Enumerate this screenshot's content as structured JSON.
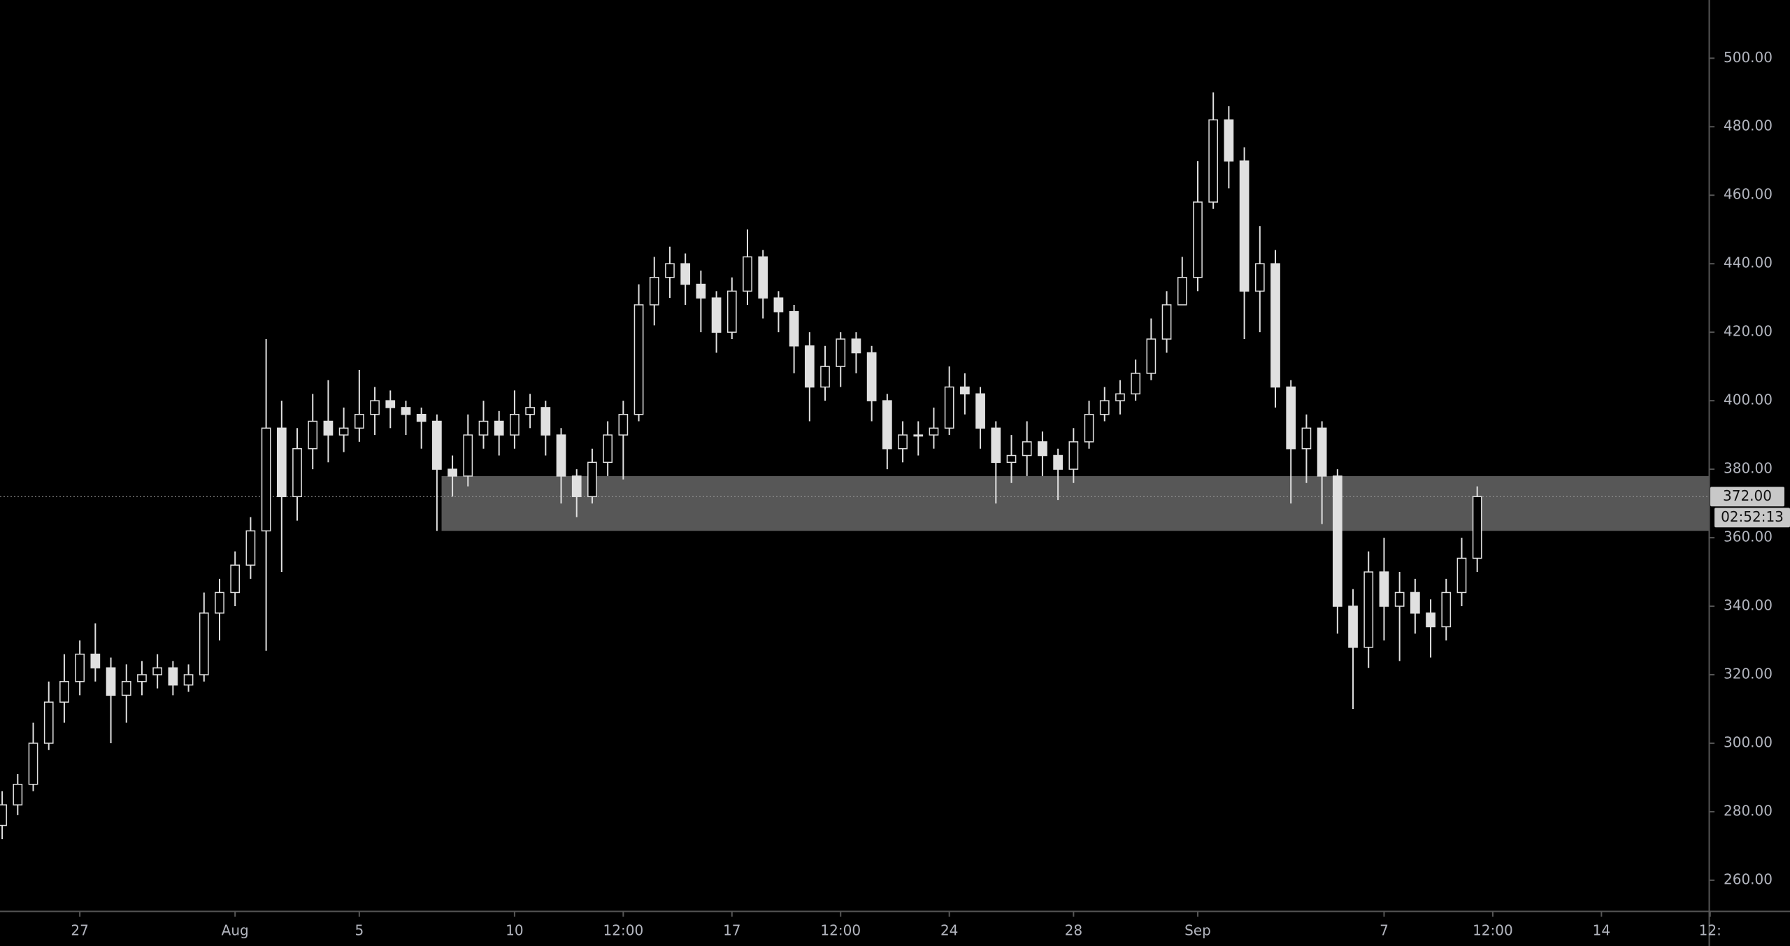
{
  "chart_data": {
    "type": "candlestick",
    "color": "#e0e0e0",
    "x": [
      -2.5,
      -2,
      -1.5,
      -1,
      -0.5,
      0,
      0.5,
      1,
      1.5,
      2,
      2.5,
      3,
      3.5,
      4,
      4.5,
      5,
      5.5,
      6,
      6.5,
      7,
      7.5,
      8,
      8.5,
      9,
      9.5,
      10,
      10.5,
      11,
      11.5,
      12,
      12.5,
      13,
      13.5,
      14,
      14.5,
      15,
      15.5,
      16,
      16.5,
      17,
      17.5,
      18,
      18.5,
      19,
      19.5,
      20,
      20.5,
      21,
      21.5,
      22,
      22.5,
      23,
      23.5,
      24,
      24.5,
      25,
      25.5,
      26,
      26.5,
      27,
      27.5,
      28,
      28.5,
      29,
      29.5,
      30,
      30.5,
      31,
      31.5,
      32,
      32.5,
      33,
      33.5,
      34,
      34.5,
      35,
      35.5,
      36,
      36.5,
      37,
      37.5,
      38,
      38.5,
      39,
      39.5,
      40,
      40.5,
      41,
      41.5,
      42,
      42.5,
      43,
      43.5,
      44,
      44.5,
      45
    ],
    "open": [
      276,
      282,
      288,
      300,
      312,
      318,
      326,
      322,
      314,
      318,
      320,
      322,
      317,
      320,
      338,
      344,
      352,
      362,
      392,
      372,
      386,
      394,
      390,
      392,
      396,
      400,
      398,
      396,
      394,
      380,
      378,
      390,
      394,
      390,
      396,
      398,
      390,
      378,
      372,
      382,
      390,
      396,
      428,
      436,
      440,
      434,
      430,
      420,
      432,
      442,
      430,
      426,
      416,
      404,
      410,
      418,
      414,
      400,
      386,
      390,
      390,
      392,
      404,
      402,
      392,
      382,
      384,
      388,
      384,
      380,
      388,
      396,
      400,
      402,
      408,
      418,
      428,
      436,
      458,
      482,
      470,
      432,
      440,
      404,
      386,
      392,
      378,
      340,
      328,
      350,
      340,
      344,
      338,
      334,
      344,
      354
    ],
    "high": [
      286,
      291,
      306,
      318,
      326,
      330,
      335,
      325,
      323,
      324,
      326,
      324,
      323,
      344,
      348,
      356,
      366,
      418,
      400,
      392,
      402,
      406,
      398,
      409,
      404,
      403,
      400,
      398,
      396,
      384,
      396,
      400,
      397,
      403,
      402,
      400,
      392,
      380,
      386,
      394,
      400,
      434,
      442,
      445,
      443,
      438,
      432,
      436,
      450,
      444,
      432,
      428,
      420,
      416,
      420,
      420,
      416,
      402,
      394,
      394,
      398,
      410,
      408,
      404,
      394,
      390,
      394,
      391,
      386,
      392,
      400,
      404,
      406,
      412,
      424,
      432,
      442,
      470,
      490,
      486,
      474,
      451,
      444,
      406,
      396,
      394,
      380,
      345,
      356,
      360,
      350,
      348,
      342,
      348,
      360,
      375
    ],
    "low": [
      272,
      279,
      286,
      298,
      306,
      314,
      318,
      300,
      306,
      314,
      316,
      314,
      315,
      318,
      330,
      340,
      348,
      327,
      350,
      365,
      380,
      382,
      385,
      388,
      390,
      392,
      390,
      386,
      362,
      372,
      375,
      386,
      384,
      386,
      392,
      384,
      370,
      366,
      370,
      378,
      377,
      394,
      422,
      430,
      428,
      420,
      414,
      418,
      428,
      424,
      420,
      408,
      394,
      400,
      404,
      408,
      394,
      380,
      382,
      384,
      386,
      390,
      396,
      386,
      370,
      376,
      378,
      378,
      371,
      376,
      386,
      394,
      396,
      400,
      406,
      414,
      428,
      432,
      456,
      462,
      418,
      420,
      398,
      370,
      376,
      364,
      332,
      310,
      322,
      330,
      324,
      332,
      325,
      330,
      340,
      350
    ],
    "close": [
      282,
      288,
      300,
      312,
      318,
      326,
      322,
      314,
      318,
      320,
      322,
      317,
      320,
      338,
      344,
      352,
      362,
      392,
      372,
      386,
      394,
      390,
      392,
      396,
      400,
      398,
      396,
      394,
      380,
      378,
      390,
      394,
      390,
      396,
      398,
      390,
      378,
      372,
      382,
      390,
      396,
      428,
      436,
      440,
      434,
      430,
      420,
      432,
      442,
      430,
      426,
      416,
      404,
      410,
      418,
      414,
      400,
      386,
      390,
      390,
      392,
      404,
      402,
      392,
      382,
      384,
      388,
      384,
      380,
      388,
      396,
      400,
      402,
      408,
      418,
      428,
      436,
      458,
      482,
      470,
      432,
      440,
      404,
      386,
      392,
      378,
      340,
      328,
      350,
      340,
      344,
      338,
      334,
      344,
      354,
      372
    ],
    "xlim": [
      -2.57,
      52.46
    ],
    "xticks": [
      {
        "value": 0,
        "label": "27"
      },
      {
        "value": 5,
        "label": "Aug"
      },
      {
        "value": 9,
        "label": "5"
      },
      {
        "value": 14,
        "label": "10"
      },
      {
        "value": 17.5,
        "label": "12:00"
      },
      {
        "value": 21,
        "label": "17"
      },
      {
        "value": 24.5,
        "label": "12:00"
      },
      {
        "value": 28,
        "label": "24"
      },
      {
        "value": 32,
        "label": "28"
      },
      {
        "value": 36,
        "label": "Sep"
      },
      {
        "value": 42,
        "label": "7"
      },
      {
        "value": 45.5,
        "label": "12:00"
      },
      {
        "value": 49,
        "label": "14"
      },
      {
        "value": 52.5,
        "label": "12:"
      }
    ],
    "ylim": [
      251,
      517
    ],
    "yticks": [
      {
        "value": 260,
        "label": "260.00"
      },
      {
        "value": 280,
        "label": "280.00"
      },
      {
        "value": 300,
        "label": "300.00"
      },
      {
        "value": 320,
        "label": "320.00"
      },
      {
        "value": 340,
        "label": "340.00"
      },
      {
        "value": 360,
        "label": "360.00"
      },
      {
        "value": 380,
        "label": "380.00"
      },
      {
        "value": 400,
        "label": "400.00"
      },
      {
        "value": 420,
        "label": "420.00"
      },
      {
        "value": 440,
        "label": "440.00"
      },
      {
        "value": 460,
        "label": "460.00"
      },
      {
        "value": 480,
        "label": "480.00"
      },
      {
        "value": 500,
        "label": "500.00"
      }
    ],
    "zone": {
      "x0": 11.65,
      "low": 362,
      "high": 378,
      "color": "#5c5c5c"
    },
    "price_line": {
      "value": 372,
      "label": "372.00"
    },
    "countdown": "02:52:13"
  }
}
